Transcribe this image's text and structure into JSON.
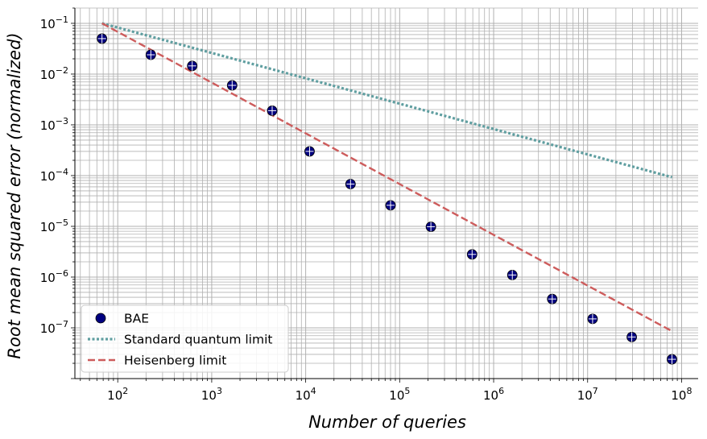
{
  "chart_data": {
    "type": "scatter",
    "xscale": "log",
    "yscale": "log",
    "xlim": [
      35,
      150000000
    ],
    "ylim": [
      1e-08,
      0.2
    ],
    "grid": "major and minor",
    "legend_position": "lower-left",
    "xlabel": "Number of queries",
    "ylabel": "Root mean squared error (normalized)",
    "x_ticks": [
      {
        "base": "10",
        "exp": "2",
        "value": 100
      },
      {
        "base": "10",
        "exp": "3",
        "value": 1000
      },
      {
        "base": "10",
        "exp": "4",
        "value": 10000
      },
      {
        "base": "10",
        "exp": "5",
        "value": 100000
      },
      {
        "base": "10",
        "exp": "6",
        "value": 1000000
      },
      {
        "base": "10",
        "exp": "7",
        "value": 10000000
      },
      {
        "base": "10",
        "exp": "8",
        "value": 100000000
      }
    ],
    "y_ticks": [
      {
        "base": "10",
        "exp": "−1",
        "value": 0.1
      },
      {
        "base": "10",
        "exp": "−2",
        "value": 0.01
      },
      {
        "base": "10",
        "exp": "−3",
        "value": 0.001
      },
      {
        "base": "10",
        "exp": "−4",
        "value": 0.0001
      },
      {
        "base": "10",
        "exp": "−5",
        "value": 1e-05
      },
      {
        "base": "10",
        "exp": "−6",
        "value": 1e-06
      },
      {
        "base": "10",
        "exp": "−7",
        "value": 1e-07
      }
    ],
    "series": [
      {
        "name": "BAE",
        "kind": "scatter",
        "color": "#000080",
        "x": [
          68,
          225,
          620,
          1650,
          4400,
          11000,
          30000,
          80000,
          215000,
          590000,
          1580000,
          4200000,
          11300000,
          29500000,
          79000000
        ],
        "y": [
          0.05,
          0.024,
          0.0145,
          0.006,
          0.0019,
          0.0003,
          6.8e-05,
          2.6e-05,
          9.8e-06,
          2.8e-06,
          1.1e-06,
          3.7e-07,
          1.5e-07,
          6.6e-08,
          2.4e-08
        ]
      },
      {
        "name": "Standard quantum limit",
        "kind": "line",
        "style": "dotted",
        "color": "#5f9ea0",
        "x": [
          68,
          79000000
        ],
        "y": [
          0.1,
          9.3e-05
        ]
      },
      {
        "name": "Heisenberg limit",
        "kind": "line",
        "style": "dashed",
        "color": "#cd5c5c",
        "x": [
          68,
          79000000
        ],
        "y": [
          0.1,
          8.6e-08
        ]
      }
    ]
  }
}
